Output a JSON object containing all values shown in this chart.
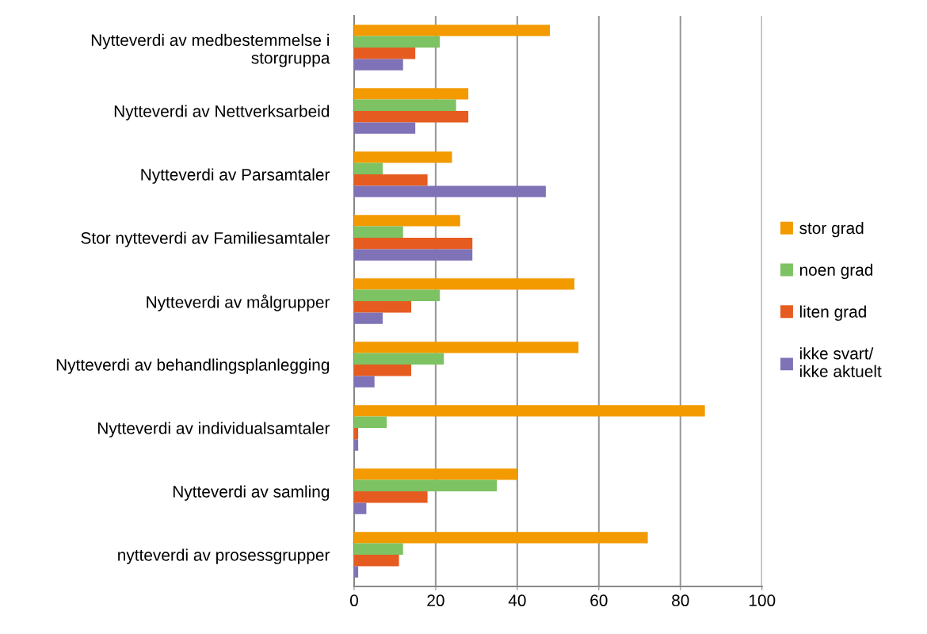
{
  "chart_data": {
    "type": "bar",
    "orientation": "horizontal",
    "categories": [
      "Nytteverdi av medbestemmelse i\nstorgruppa",
      "Nytteverdi av Nettverksarbeid",
      "Nytteverdi av Parsamtaler",
      "Stor nytteverdi av Familiesamtaler",
      "Nytteverdi av målgrupper",
      "Nytteverdi av behandlingsplanlegging",
      "Nytteverdi av individualsamtaler",
      "Nytteverdi av samling",
      "nytteverdi av prosessgrupper"
    ],
    "series": [
      {
        "name": "stor grad",
        "color": "#f29a00",
        "values": [
          48,
          28,
          24,
          26,
          54,
          55,
          86,
          40,
          72
        ]
      },
      {
        "name": "noen grad",
        "color": "#7dc263",
        "values": [
          21,
          25,
          7,
          12,
          21,
          22,
          8,
          35,
          12
        ]
      },
      {
        "name": "liten grad",
        "color": "#e65b20",
        "values": [
          15,
          28,
          18,
          29,
          14,
          14,
          1,
          18,
          11
        ]
      },
      {
        "name": "ikke svart/\nikke aktuelt",
        "color": "#7f72b6",
        "values": [
          12,
          15,
          47,
          29,
          7,
          5,
          1,
          3,
          1
        ]
      }
    ],
    "xlim": [
      0,
      100
    ],
    "xticks": [
      0,
      20,
      40,
      60,
      80,
      100
    ],
    "grid": "x",
    "legend": "right"
  }
}
